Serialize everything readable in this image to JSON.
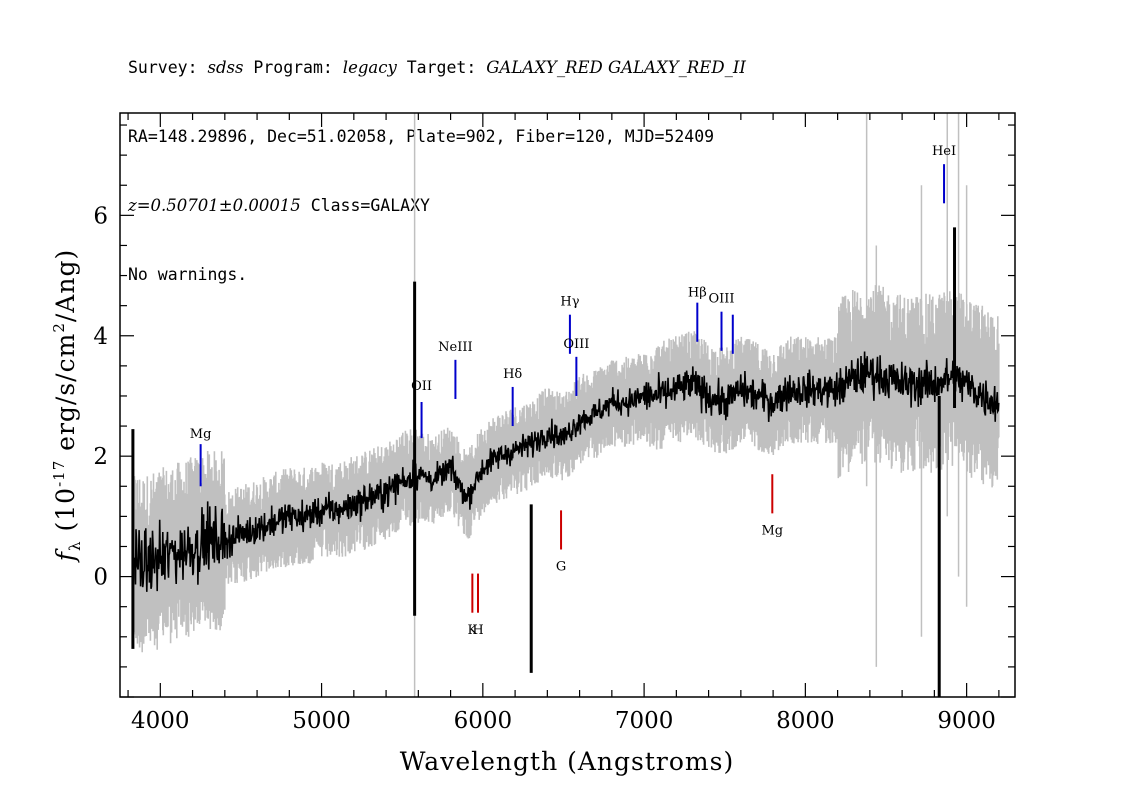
{
  "header": {
    "survey_label": "Survey: ",
    "survey": "sdss",
    "program_label": " Program: ",
    "program": "legacy",
    "target_label": " Target: ",
    "target": "GALAXY_RED GALAXY_RED_II",
    "line2": "RA=148.29896, Dec=51.02058, Plate=902, Fiber=120, MJD=52409",
    "redshift": "z=0.50701±0.00015",
    "class_text": " Class=GALAXY",
    "warnings": "No warnings."
  },
  "chart_data": {
    "type": "line",
    "xlabel": "Wavelength (Angstroms)",
    "ylabel_prefix": "f",
    "ylabel_sub": "λ",
    "ylabel_main": " (10",
    "ylabel_exp": "-17",
    "ylabel_rest": " erg/s/cm",
    "ylabel_exp2": "2",
    "ylabel_end": "/Ang)",
    "xlim": [
      3750,
      9300
    ],
    "ylim": [
      -2.0,
      7.7
    ],
    "x_ticks": [
      4000,
      5000,
      6000,
      7000,
      8000,
      9000
    ],
    "x_tick_labels": [
      "4000",
      "5000",
      "6000",
      "7000",
      "8000",
      "9000"
    ],
    "y_ticks": [
      0,
      2,
      4,
      6
    ],
    "y_tick_labels": [
      "0",
      "2",
      "4",
      "6"
    ],
    "grid": false,
    "series": [
      {
        "role": "spectrum",
        "color": "#000000",
        "x": [
          3830,
          3900,
          4000,
          4100,
          4200,
          4300,
          4400,
          4500,
          4600,
          4700,
          4800,
          4900,
          5000,
          5100,
          5200,
          5300,
          5400,
          5500,
          5600,
          5700,
          5800,
          5900,
          6000,
          6100,
          6200,
          6300,
          6400,
          6500,
          6600,
          6700,
          6800,
          6900,
          7000,
          7100,
          7200,
          7300,
          7400,
          7500,
          7600,
          7700,
          7800,
          7900,
          8000,
          8100,
          8200,
          8300,
          8400,
          8500,
          8600,
          8700,
          8800,
          8900,
          9000,
          9100,
          9200
        ],
        "y": [
          0.3,
          0.2,
          0.3,
          0.4,
          0.5,
          0.6,
          0.6,
          0.7,
          0.8,
          0.9,
          1.0,
          1.0,
          1.1,
          1.1,
          1.2,
          1.3,
          1.4,
          1.6,
          1.7,
          1.6,
          1.8,
          1.3,
          1.8,
          2.0,
          2.1,
          2.2,
          2.4,
          2.3,
          2.6,
          2.7,
          2.9,
          2.9,
          3.0,
          3.0,
          3.1,
          3.2,
          3.0,
          2.9,
          3.1,
          3.0,
          2.9,
          3.1,
          3.1,
          3.1,
          3.1,
          3.3,
          3.4,
          3.3,
          3.2,
          3.2,
          3.2,
          3.3,
          3.2,
          3.0,
          2.9
        ]
      },
      {
        "role": "error",
        "color": "#c0c0c0"
      }
    ],
    "emission_lines": [
      {
        "label": "Mg",
        "x": 4250,
        "color": "#0000cc",
        "y_bottom": 1.5,
        "y_top": 2.2,
        "label_y": 2.3,
        "label_pos": "above"
      },
      {
        "label": "OII",
        "x": 5620,
        "color": "#0000cc",
        "y_bottom": 2.3,
        "y_top": 2.9,
        "label_y": 3.1,
        "label_pos": "above"
      },
      {
        "label": "NeIII",
        "x": 5830,
        "color": "#0000cc",
        "y_bottom": 2.95,
        "y_top": 3.6,
        "label_y": 3.75,
        "label_pos": "above"
      },
      {
        "label": "Hδ",
        "x": 6185,
        "color": "#0000cc",
        "y_bottom": 2.5,
        "y_top": 3.15,
        "label_y": 3.3,
        "label_pos": "above"
      },
      {
        "label": "Hγ",
        "x": 6540,
        "color": "#0000cc",
        "y_bottom": 3.7,
        "y_top": 4.35,
        "label_y": 4.5,
        "label_pos": "above"
      },
      {
        "label": "OIII",
        "x": 6580,
        "color": "#0000cc",
        "y_bottom": 3.0,
        "y_top": 3.65,
        "label_y": 3.8,
        "label_pos": "above"
      },
      {
        "label": "Hβ",
        "x": 7330,
        "color": "#0000cc",
        "y_bottom": 3.9,
        "y_top": 4.55,
        "label_y": 4.65,
        "label_pos": "above"
      },
      {
        "label": "OIII",
        "x": 7480,
        "color": "#0000cc",
        "y_bottom": 3.75,
        "y_top": 4.4,
        "label_y": 4.55,
        "label_pos": "above"
      },
      {
        "label": "",
        "x": 7550,
        "color": "#0000cc",
        "y_bottom": 3.7,
        "y_top": 4.35,
        "label_y": 0,
        "label_pos": "none"
      },
      {
        "label": "HeI",
        "x": 8860,
        "color": "#0000cc",
        "y_bottom": 6.2,
        "y_top": 6.85,
        "label_y": 7.0,
        "label_pos": "above"
      }
    ],
    "absorption_lines": [
      {
        "label": "K",
        "x": 5935,
        "color": "#cc0000",
        "y_bottom": -0.6,
        "y_top": 0.05,
        "label_y": -0.95,
        "label_pos": "below"
      },
      {
        "label": "H",
        "x": 5970,
        "color": "#cc0000",
        "y_bottom": -0.6,
        "y_top": 0.05,
        "label_y": -0.95,
        "label_pos": "below"
      },
      {
        "label": "G",
        "x": 6485,
        "color": "#cc0000",
        "y_bottom": 0.45,
        "y_top": 1.1,
        "label_y": 0.1,
        "label_pos": "below"
      },
      {
        "label": "Mg",
        "x": 7795,
        "color": "#cc0000",
        "y_bottom": 1.05,
        "y_top": 1.7,
        "label_y": 0.7,
        "label_pos": "below"
      }
    ],
    "spikes": [
      {
        "x": 3830,
        "y_bottom": -1.2,
        "y_top": 2.45,
        "color": "#000000"
      },
      {
        "x": 5577,
        "y_bottom": -0.65,
        "y_top": 4.9,
        "color": "#000000"
      },
      {
        "x": 6300,
        "y_bottom": -1.6,
        "y_top": 1.2,
        "color": "#000000"
      },
      {
        "x": 8830,
        "y_bottom": -2.0,
        "y_top": 3.0,
        "color": "#000000"
      },
      {
        "x": 8925,
        "y_bottom": 2.8,
        "y_top": 5.8,
        "color": "#000000"
      }
    ]
  }
}
